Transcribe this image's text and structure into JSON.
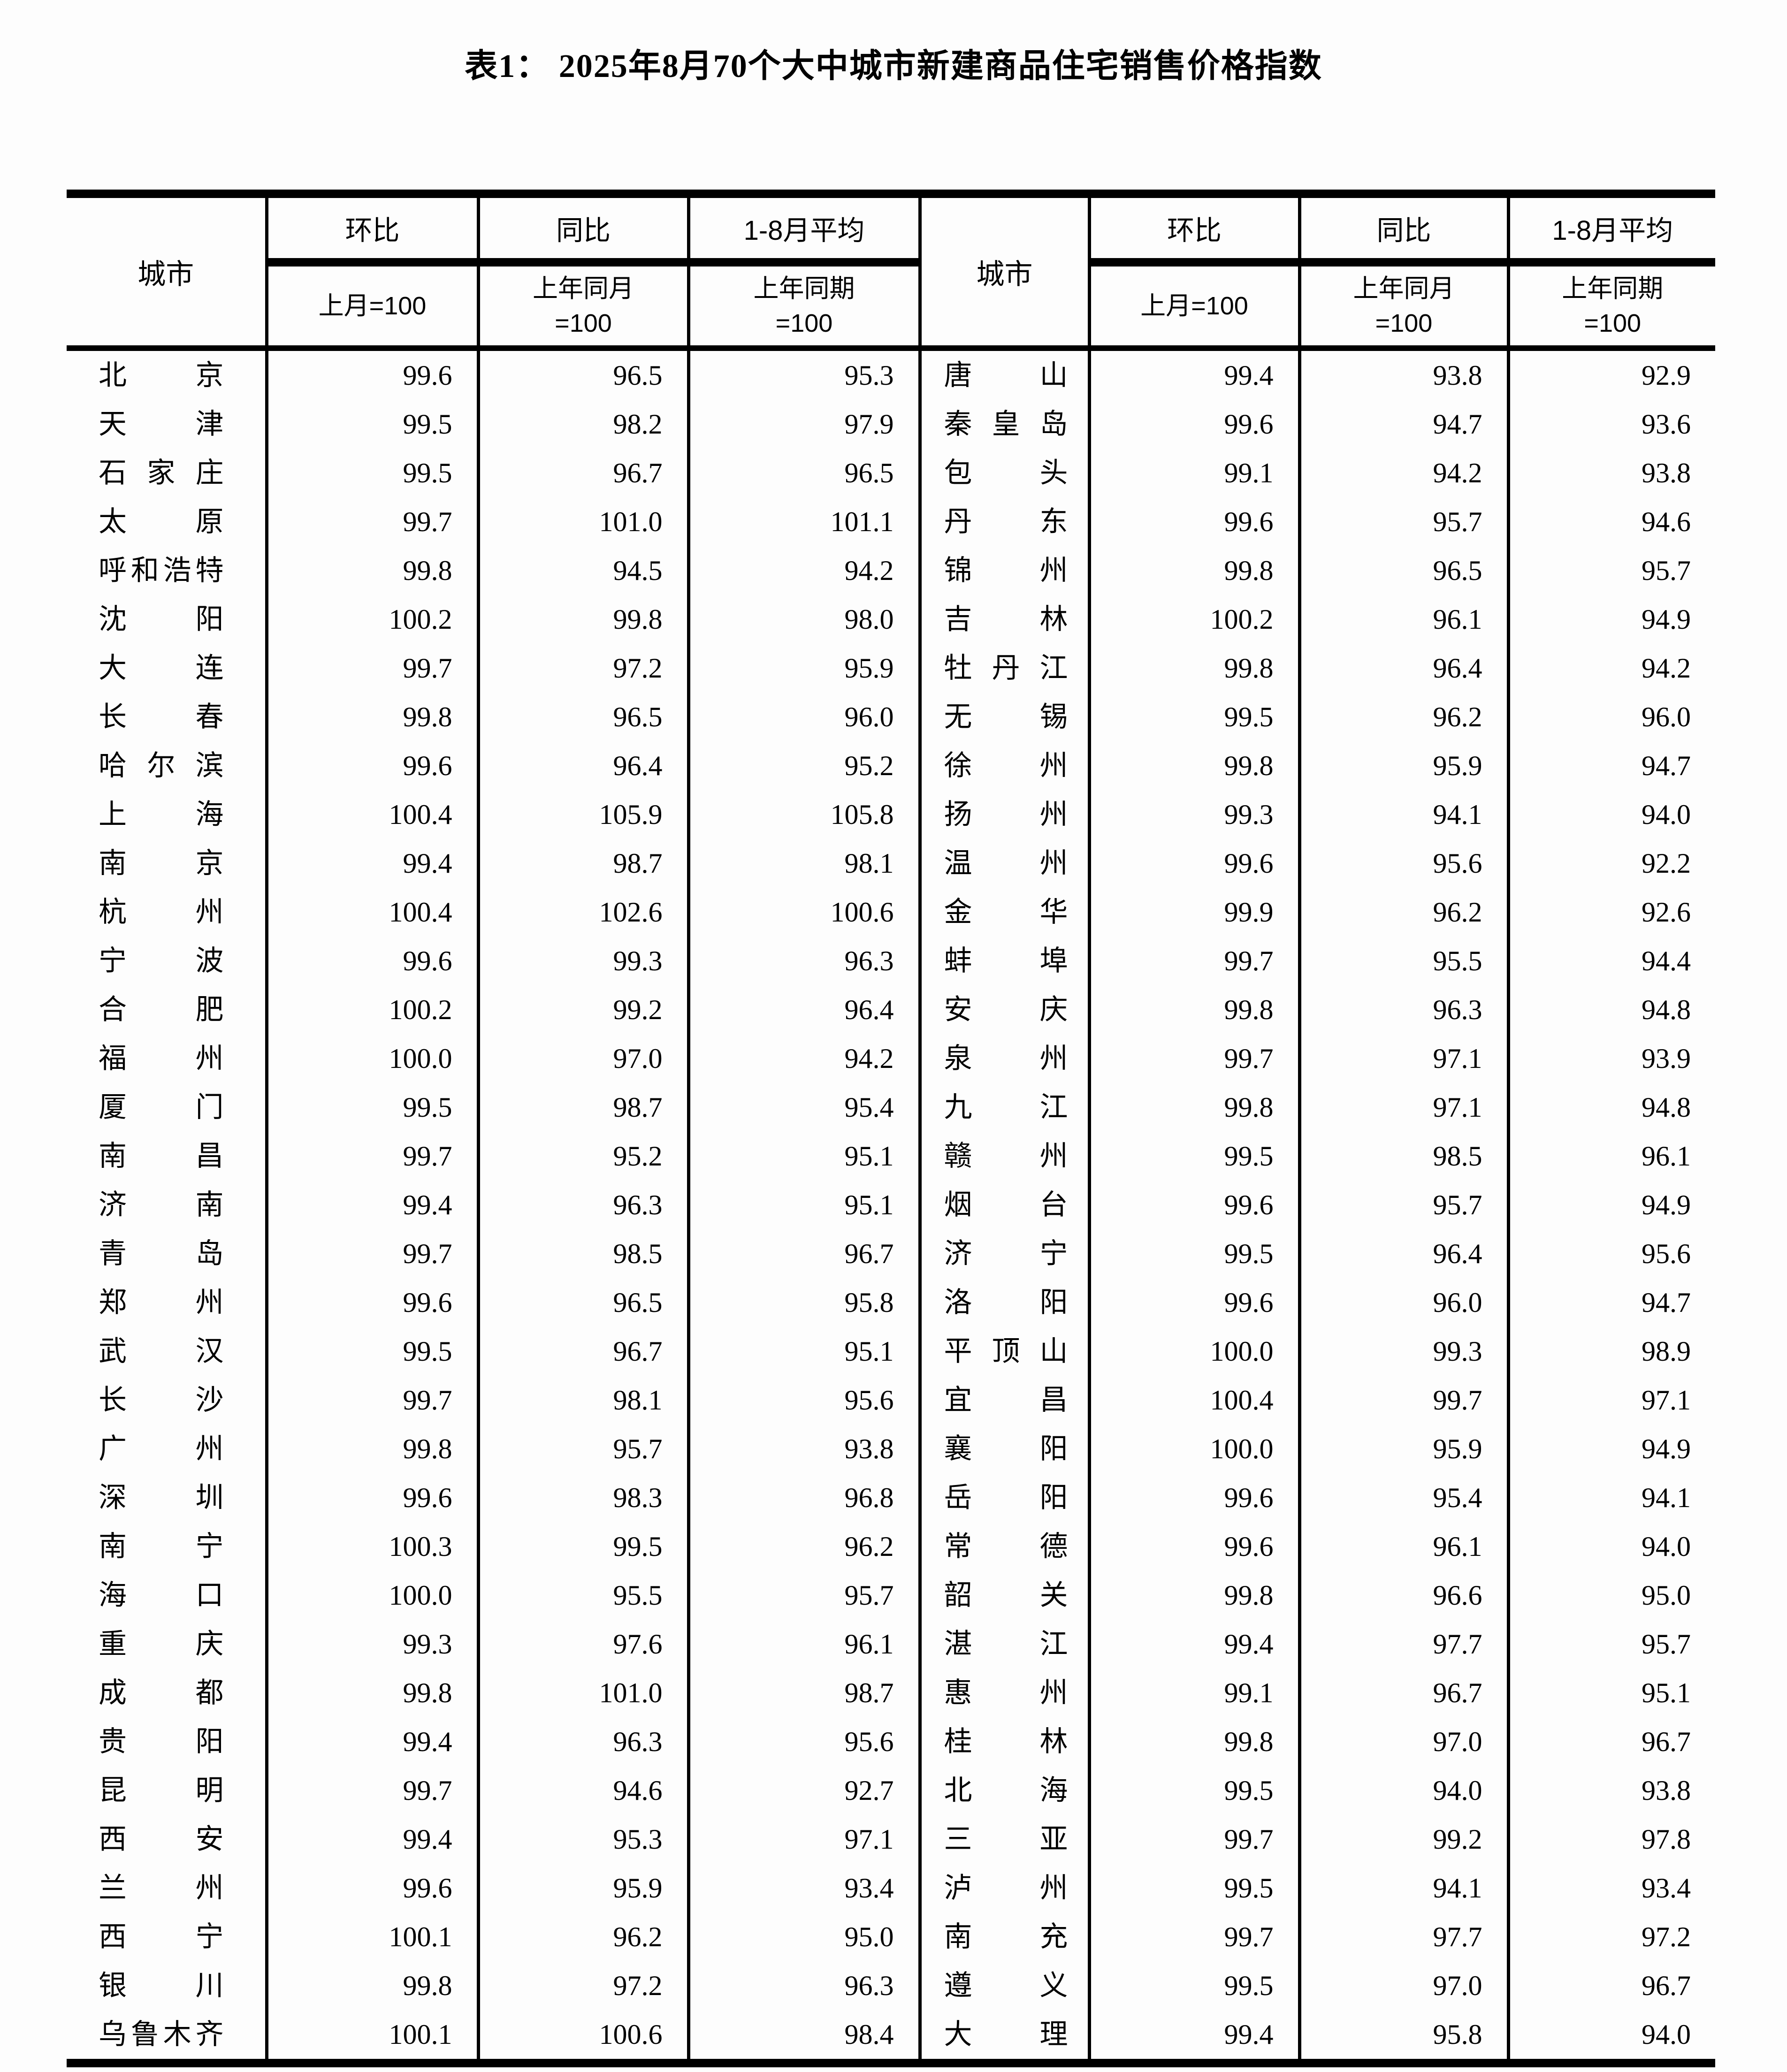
{
  "title": "表1： 2025年8月70个大中城市新建商品住宅销售价格指数",
  "header": {
    "city": "城市",
    "mom_group": "环比",
    "yoy_group": "同比",
    "avg_group": "1-8月平均",
    "mom_base": "上月=100",
    "yoy_base_line1": "上年同月",
    "yoy_base_line2": "=100",
    "avg_base_line1": "上年同期",
    "avg_base_line2": "=100"
  },
  "table": {
    "left_rows": [
      {
        "city": "北京",
        "mom": "99.6",
        "yoy": "96.5",
        "avg": "95.3"
      },
      {
        "city": "天津",
        "mom": "99.5",
        "yoy": "98.2",
        "avg": "97.9"
      },
      {
        "city": "石家庄",
        "mom": "99.5",
        "yoy": "96.7",
        "avg": "96.5"
      },
      {
        "city": "太原",
        "mom": "99.7",
        "yoy": "101.0",
        "avg": "101.1"
      },
      {
        "city": "呼和浩特",
        "mom": "99.8",
        "yoy": "94.5",
        "avg": "94.2"
      },
      {
        "city": "沈阳",
        "mom": "100.2",
        "yoy": "99.8",
        "avg": "98.0"
      },
      {
        "city": "大连",
        "mom": "99.7",
        "yoy": "97.2",
        "avg": "95.9"
      },
      {
        "city": "长春",
        "mom": "99.8",
        "yoy": "96.5",
        "avg": "96.0"
      },
      {
        "city": "哈尔滨",
        "mom": "99.6",
        "yoy": "96.4",
        "avg": "95.2"
      },
      {
        "city": "上海",
        "mom": "100.4",
        "yoy": "105.9",
        "avg": "105.8"
      },
      {
        "city": "南京",
        "mom": "99.4",
        "yoy": "98.7",
        "avg": "98.1"
      },
      {
        "city": "杭州",
        "mom": "100.4",
        "yoy": "102.6",
        "avg": "100.6"
      },
      {
        "city": "宁波",
        "mom": "99.6",
        "yoy": "99.3",
        "avg": "96.3"
      },
      {
        "city": "合肥",
        "mom": "100.2",
        "yoy": "99.2",
        "avg": "96.4"
      },
      {
        "city": "福州",
        "mom": "100.0",
        "yoy": "97.0",
        "avg": "94.2"
      },
      {
        "city": "厦门",
        "mom": "99.5",
        "yoy": "98.7",
        "avg": "95.4"
      },
      {
        "city": "南昌",
        "mom": "99.7",
        "yoy": "95.2",
        "avg": "95.1"
      },
      {
        "city": "济南",
        "mom": "99.4",
        "yoy": "96.3",
        "avg": "95.1"
      },
      {
        "city": "青岛",
        "mom": "99.7",
        "yoy": "98.5",
        "avg": "96.7"
      },
      {
        "city": "郑州",
        "mom": "99.6",
        "yoy": "96.5",
        "avg": "95.8"
      },
      {
        "city": "武汉",
        "mom": "99.5",
        "yoy": "96.7",
        "avg": "95.1"
      },
      {
        "city": "长沙",
        "mom": "99.7",
        "yoy": "98.1",
        "avg": "95.6"
      },
      {
        "city": "广州",
        "mom": "99.8",
        "yoy": "95.7",
        "avg": "93.8"
      },
      {
        "city": "深圳",
        "mom": "99.6",
        "yoy": "98.3",
        "avg": "96.8"
      },
      {
        "city": "南宁",
        "mom": "100.3",
        "yoy": "99.5",
        "avg": "96.2"
      },
      {
        "city": "海口",
        "mom": "100.0",
        "yoy": "95.5",
        "avg": "95.7"
      },
      {
        "city": "重庆",
        "mom": "99.3",
        "yoy": "97.6",
        "avg": "96.1"
      },
      {
        "city": "成都",
        "mom": "99.8",
        "yoy": "101.0",
        "avg": "98.7"
      },
      {
        "city": "贵阳",
        "mom": "99.4",
        "yoy": "96.3",
        "avg": "95.6"
      },
      {
        "city": "昆明",
        "mom": "99.7",
        "yoy": "94.6",
        "avg": "92.7"
      },
      {
        "city": "西安",
        "mom": "99.4",
        "yoy": "95.3",
        "avg": "97.1"
      },
      {
        "city": "兰州",
        "mom": "99.6",
        "yoy": "95.9",
        "avg": "93.4"
      },
      {
        "city": "西宁",
        "mom": "100.1",
        "yoy": "96.2",
        "avg": "95.0"
      },
      {
        "city": "银川",
        "mom": "99.8",
        "yoy": "97.2",
        "avg": "96.3"
      },
      {
        "city": "乌鲁木齐",
        "mom": "100.1",
        "yoy": "100.6",
        "avg": "98.4"
      }
    ],
    "right_rows": [
      {
        "city": "唐山",
        "mom": "99.4",
        "yoy": "93.8",
        "avg": "92.9"
      },
      {
        "city": "秦皇岛",
        "mom": "99.6",
        "yoy": "94.7",
        "avg": "93.6"
      },
      {
        "city": "包头",
        "mom": "99.1",
        "yoy": "94.2",
        "avg": "93.8"
      },
      {
        "city": "丹东",
        "mom": "99.6",
        "yoy": "95.7",
        "avg": "94.6"
      },
      {
        "city": "锦州",
        "mom": "99.8",
        "yoy": "96.5",
        "avg": "95.7"
      },
      {
        "city": "吉林",
        "mom": "100.2",
        "yoy": "96.1",
        "avg": "94.9"
      },
      {
        "city": "牡丹江",
        "mom": "99.8",
        "yoy": "96.4",
        "avg": "94.2"
      },
      {
        "city": "无锡",
        "mom": "99.5",
        "yoy": "96.2",
        "avg": "96.0"
      },
      {
        "city": "徐州",
        "mom": "99.8",
        "yoy": "95.9",
        "avg": "94.7"
      },
      {
        "city": "扬州",
        "mom": "99.3",
        "yoy": "94.1",
        "avg": "94.0"
      },
      {
        "city": "温州",
        "mom": "99.6",
        "yoy": "95.6",
        "avg": "92.2"
      },
      {
        "city": "金华",
        "mom": "99.9",
        "yoy": "96.2",
        "avg": "92.6"
      },
      {
        "city": "蚌埠",
        "mom": "99.7",
        "yoy": "95.5",
        "avg": "94.4"
      },
      {
        "city": "安庆",
        "mom": "99.8",
        "yoy": "96.3",
        "avg": "94.8"
      },
      {
        "city": "泉州",
        "mom": "99.7",
        "yoy": "97.1",
        "avg": "93.9"
      },
      {
        "city": "九江",
        "mom": "99.8",
        "yoy": "97.1",
        "avg": "94.8"
      },
      {
        "city": "赣州",
        "mom": "99.5",
        "yoy": "98.5",
        "avg": "96.1"
      },
      {
        "city": "烟台",
        "mom": "99.6",
        "yoy": "95.7",
        "avg": "94.9"
      },
      {
        "city": "济宁",
        "mom": "99.5",
        "yoy": "96.4",
        "avg": "95.6"
      },
      {
        "city": "洛阳",
        "mom": "99.6",
        "yoy": "96.0",
        "avg": "94.7"
      },
      {
        "city": "平顶山",
        "mom": "100.0",
        "yoy": "99.3",
        "avg": "98.9"
      },
      {
        "city": "宜昌",
        "mom": "100.4",
        "yoy": "99.7",
        "avg": "97.1"
      },
      {
        "city": "襄阳",
        "mom": "100.0",
        "yoy": "95.9",
        "avg": "94.9"
      },
      {
        "city": "岳阳",
        "mom": "99.6",
        "yoy": "95.4",
        "avg": "94.1"
      },
      {
        "city": "常德",
        "mom": "99.6",
        "yoy": "96.1",
        "avg": "94.0"
      },
      {
        "city": "韶关",
        "mom": "99.8",
        "yoy": "96.6",
        "avg": "95.0"
      },
      {
        "city": "湛江",
        "mom": "99.4",
        "yoy": "97.7",
        "avg": "95.7"
      },
      {
        "city": "惠州",
        "mom": "99.1",
        "yoy": "96.7",
        "avg": "95.1"
      },
      {
        "city": "桂林",
        "mom": "99.8",
        "yoy": "97.0",
        "avg": "96.7"
      },
      {
        "city": "北海",
        "mom": "99.5",
        "yoy": "94.0",
        "avg": "93.8"
      },
      {
        "city": "三亚",
        "mom": "99.7",
        "yoy": "99.2",
        "avg": "97.8"
      },
      {
        "city": "泸州",
        "mom": "99.5",
        "yoy": "94.1",
        "avg": "93.4"
      },
      {
        "city": "南充",
        "mom": "99.7",
        "yoy": "97.7",
        "avg": "97.2"
      },
      {
        "city": "遵义",
        "mom": "99.5",
        "yoy": "97.0",
        "avg": "96.7"
      },
      {
        "city": "大理",
        "mom": "99.4",
        "yoy": "95.8",
        "avg": "94.0"
      }
    ]
  }
}
